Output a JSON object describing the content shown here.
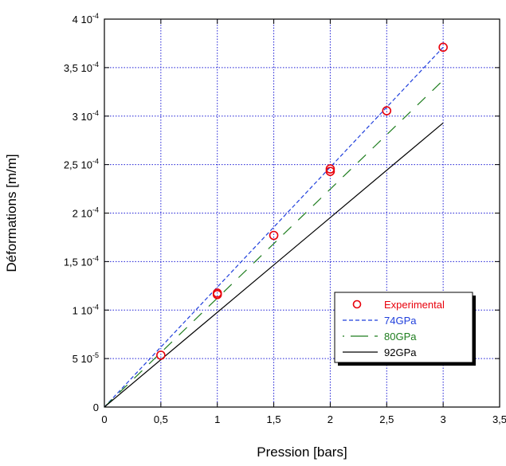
{
  "chart_data": {
    "type": "line",
    "title": "",
    "xlabel": "Pression [bars]",
    "ylabel": "Déformations [m/m]",
    "xlim": [
      0,
      3.5
    ],
    "ylim": [
      0,
      0.0004
    ],
    "grid": true,
    "legend_position": "bottom-right",
    "x_ticks": [
      {
        "value": 0,
        "label": "0"
      },
      {
        "value": 0.5,
        "label": "0,5"
      },
      {
        "value": 1,
        "label": "1"
      },
      {
        "value": 1.5,
        "label": "1,5"
      },
      {
        "value": 2,
        "label": "2"
      },
      {
        "value": 2.5,
        "label": "2,5"
      },
      {
        "value": 3,
        "label": "3"
      },
      {
        "value": 3.5,
        "label": "3,5"
      }
    ],
    "y_ticks": [
      {
        "value": 0,
        "mantissa": "0",
        "exp": ""
      },
      {
        "value": 5e-05,
        "mantissa": "5 10",
        "exp": "-5"
      },
      {
        "value": 0.0001,
        "mantissa": "1 10",
        "exp": "-4"
      },
      {
        "value": 0.00015,
        "mantissa": "1,5 10",
        "exp": "-4"
      },
      {
        "value": 0.0002,
        "mantissa": "2 10",
        "exp": "-4"
      },
      {
        "value": 0.00025,
        "mantissa": "2,5 10",
        "exp": "-4"
      },
      {
        "value": 0.0003,
        "mantissa": "3 10",
        "exp": "-4"
      },
      {
        "value": 0.00035,
        "mantissa": "3,5 10",
        "exp": "-4"
      },
      {
        "value": 0.0004,
        "mantissa": "4 10",
        "exp": "-4"
      }
    ],
    "series": [
      {
        "name": "Experimental",
        "kind": "markers",
        "color": "#e8000b",
        "x": [
          0.5,
          1,
          1,
          1.5,
          2,
          2,
          2.5,
          3
        ],
        "y": [
          5.35e-05,
          0.0001175,
          0.000116,
          0.000177,
          0.0002455,
          0.000243,
          0.0003055,
          0.000371
        ]
      },
      {
        "name": "74GPa",
        "kind": "line",
        "dash": "short",
        "color": "#1f3fdc",
        "x": [
          0,
          3
        ],
        "y": [
          0,
          0.000371
        ]
      },
      {
        "name": "80GPa",
        "kind": "line",
        "dash": "long",
        "color": "#1e7d1e",
        "x": [
          0,
          3
        ],
        "y": [
          0,
          0.000337
        ]
      },
      {
        "name": "92GPa",
        "kind": "line",
        "dash": "solid",
        "color": "#000000",
        "x": [
          0,
          3
        ],
        "y": [
          0,
          0.000293
        ]
      }
    ]
  },
  "colors": {
    "grid": "#1f1fd6",
    "axes": "#000000"
  }
}
